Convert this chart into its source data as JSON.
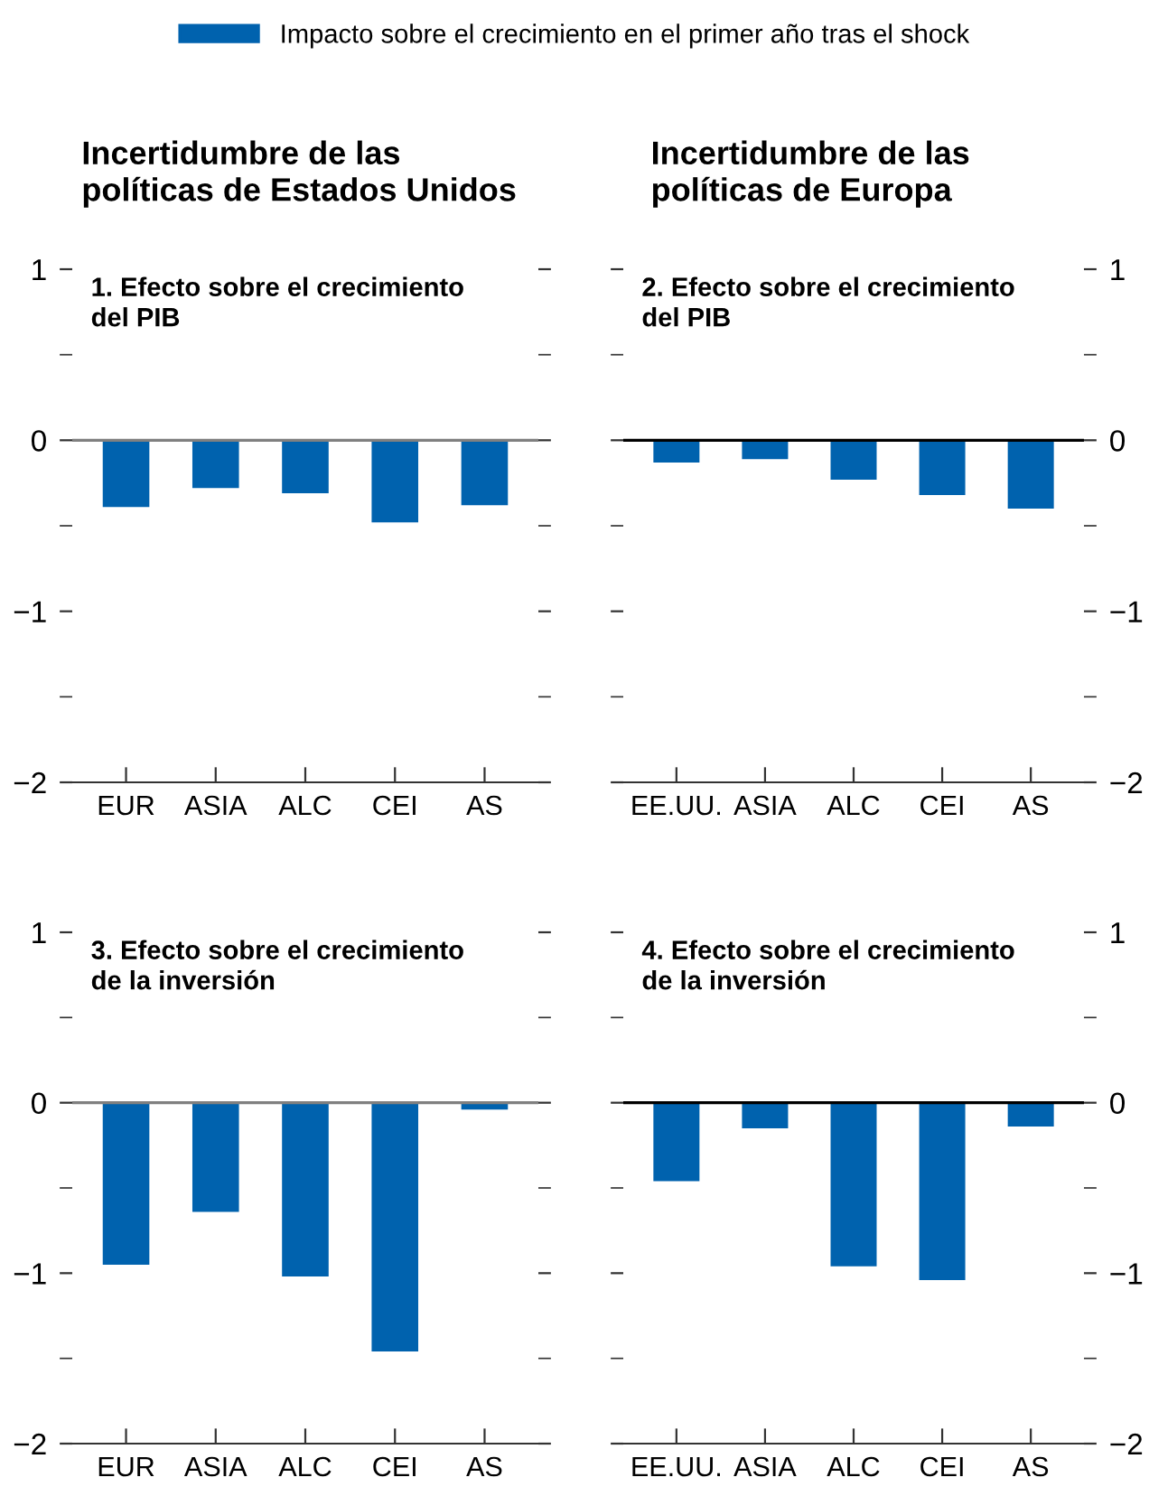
{
  "chart_data": [
    {
      "type": "bar",
      "title": "Incertidumbre de las\npolíticas de Estados Unidos",
      "subtitle": "1. Efecto sobre el crecimiento\ndel PIB",
      "categories": [
        "EUR",
        "ASIA",
        "ALC",
        "CEI",
        "AS"
      ],
      "series": [
        {
          "name": "Impacto sobre el crecimiento en el primer año tras el shock",
          "color": "#0062ae",
          "values": [
            -0.39,
            -0.28,
            -0.31,
            -0.48,
            -0.38
          ]
        }
      ],
      "legend": "top",
      "ylim": [
        -2,
        1
      ],
      "yticks": [
        {
          "value": -2,
          "label": "−2"
        },
        {
          "value": -1.5,
          "label": null
        },
        {
          "value": -1,
          "label": "−1"
        },
        {
          "value": -0.5,
          "label": null
        },
        0,
        {
          "value": 0.5,
          "label": null
        },
        1
      ],
      "ref_lines": [
        {
          "axis": "y",
          "value": 0,
          "color": "#808080"
        }
      ],
      "grid": false
    },
    {
      "type": "bar",
      "title": "Incertidumbre de las\npolíticas de Europa",
      "subtitle": "2. Efecto sobre el crecimiento\ndel PIB",
      "categories": [
        "EE.UU.",
        "ASIA",
        "ALC",
        "CEI",
        "AS"
      ],
      "series": [
        {
          "color": "#0062ae",
          "values": [
            -0.13,
            -0.11,
            -0.23,
            -0.32,
            -0.4
          ]
        }
      ],
      "ylim": [
        -2,
        1
      ],
      "yticks": [
        {
          "value": -2,
          "label": "−2"
        },
        {
          "value": -1.5,
          "label": null
        },
        {
          "value": -1,
          "label": "−1"
        },
        {
          "value": -0.5,
          "label": null
        },
        0,
        {
          "value": 0.5,
          "label": null
        },
        1
      ],
      "ref_lines": [
        {
          "axis": "y",
          "value": 0,
          "color": "#000000"
        }
      ],
      "grid": false
    },
    {
      "type": "bar",
      "subtitle": "3. Efecto sobre el crecimiento\nde la inversión",
      "categories": [
        "EUR",
        "ASIA",
        "ALC",
        "CEI",
        "AS"
      ],
      "series": [
        {
          "color": "#0062ae",
          "values": [
            -0.95,
            -0.64,
            -1.02,
            -1.46,
            -0.04
          ]
        }
      ],
      "ylim": [
        -2,
        1
      ],
      "yticks": [
        {
          "value": -2,
          "label": "−2"
        },
        {
          "value": -1.5,
          "label": null
        },
        {
          "value": -1,
          "label": "−1"
        },
        {
          "value": -0.5,
          "label": null
        },
        0,
        {
          "value": 0.5,
          "label": null
        },
        1
      ],
      "ref_lines": [
        {
          "axis": "y",
          "value": 0,
          "color": "#808080"
        }
      ],
      "grid": false
    },
    {
      "type": "bar",
      "subtitle": "4. Efecto sobre el crecimiento\nde la inversión",
      "categories": [
        "EE.UU.",
        "ASIA",
        "ALC",
        "CEI",
        "AS"
      ],
      "series": [
        {
          "color": "#0062ae",
          "values": [
            -0.46,
            -0.15,
            -0.96,
            -1.04,
            -0.14
          ]
        }
      ],
      "ylim": [
        -2,
        1
      ],
      "yticks": [
        {
          "value": -2,
          "label": "−2"
        },
        {
          "value": -1.5,
          "label": null
        },
        {
          "value": -1,
          "label": "−1"
        },
        {
          "value": -0.5,
          "label": null
        },
        0,
        {
          "value": 0.5,
          "label": null
        },
        1
      ],
      "ref_lines": [
        {
          "axis": "y",
          "value": 0,
          "color": "#000000"
        }
      ],
      "grid": false
    }
  ]
}
